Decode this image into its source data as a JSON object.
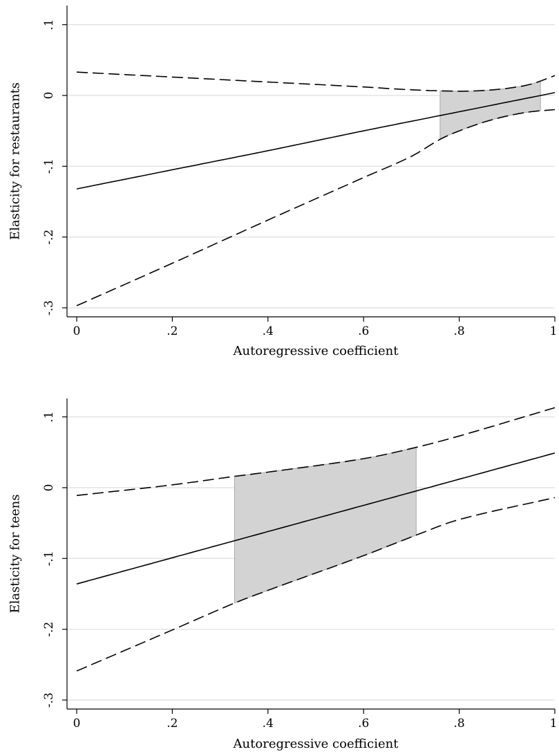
{
  "chart_data": [
    {
      "type": "line",
      "xlabel": "Autoregressive coefficient",
      "ylabel": "Elasticity for restaurants",
      "xlim": [
        0,
        1
      ],
      "ylim": [
        -0.3,
        0.12
      ],
      "x_ticks": [
        0,
        0.2,
        0.4,
        0.6,
        0.8,
        1
      ],
      "x_tick_labels": [
        "0",
        ".2",
        ".4",
        ".6",
        ".8",
        "1"
      ],
      "y_ticks": [
        -0.3,
        -0.2,
        -0.1,
        0,
        0.1
      ],
      "y_tick_labels": [
        "-.3",
        "-.2",
        "-.1",
        "0",
        ".1"
      ],
      "grid": true,
      "series": [
        {
          "role": "estimate",
          "style": "solid",
          "x": [
            0,
            0.2,
            0.4,
            0.6,
            0.8,
            1.0
          ],
          "y": [
            -0.132,
            -0.105,
            -0.078,
            -0.05,
            -0.023,
            0.004
          ]
        },
        {
          "role": "upper_bound",
          "style": "dashed",
          "x": [
            0,
            0.2,
            0.4,
            0.6,
            0.7,
            0.8,
            0.85,
            0.9,
            0.95,
            1.0
          ],
          "y": [
            0.033,
            0.026,
            0.019,
            0.012,
            0.008,
            0.006,
            0.007,
            0.01,
            0.016,
            0.028
          ]
        },
        {
          "role": "lower_bound",
          "style": "dashed",
          "x": [
            0,
            0.2,
            0.4,
            0.6,
            0.7,
            0.76,
            0.8,
            0.85,
            0.9,
            0.95,
            1.0
          ],
          "y": [
            -0.297,
            -0.237,
            -0.176,
            -0.116,
            -0.086,
            -0.062,
            -0.05,
            -0.038,
            -0.029,
            -0.023,
            -0.02
          ]
        }
      ],
      "shaded_region": {
        "x_from": 0.76,
        "x_to": 0.97,
        "fill": "#d3d3d3"
      }
    },
    {
      "type": "line",
      "xlabel": "Autoregressive coefficient",
      "ylabel": "Elasticity for teens",
      "xlim": [
        0,
        1
      ],
      "ylim": [
        -0.3,
        0.12
      ],
      "x_ticks": [
        0,
        0.2,
        0.4,
        0.6,
        0.8,
        1
      ],
      "x_tick_labels": [
        "0",
        ".2",
        ".4",
        ".6",
        ".8",
        "1"
      ],
      "y_ticks": [
        -0.3,
        -0.2,
        -0.1,
        0,
        0.1
      ],
      "y_tick_labels": [
        "-.3",
        "-.2",
        "-.1",
        "0",
        ".1"
      ],
      "grid": true,
      "series": [
        {
          "role": "estimate",
          "style": "solid",
          "x": [
            0,
            0.2,
            0.4,
            0.6,
            0.8,
            1.0
          ],
          "y": [
            -0.136,
            -0.099,
            -0.062,
            -0.025,
            0.012,
            0.049
          ]
        },
        {
          "role": "upper_bound",
          "style": "dashed",
          "x": [
            0,
            0.2,
            0.33,
            0.4,
            0.6,
            0.71,
            0.8,
            1.0
          ],
          "y": [
            -0.011,
            0.004,
            0.016,
            0.022,
            0.041,
            0.057,
            0.073,
            0.113
          ]
        },
        {
          "role": "lower_bound",
          "style": "dashed",
          "x": [
            0,
            0.2,
            0.33,
            0.4,
            0.6,
            0.71,
            0.8,
            1.0
          ],
          "y": [
            -0.259,
            -0.201,
            -0.163,
            -0.145,
            -0.096,
            -0.067,
            -0.045,
            -0.014
          ]
        }
      ],
      "shaded_region": {
        "x_from": 0.33,
        "x_to": 0.71,
        "fill": "#d3d3d3"
      }
    }
  ]
}
